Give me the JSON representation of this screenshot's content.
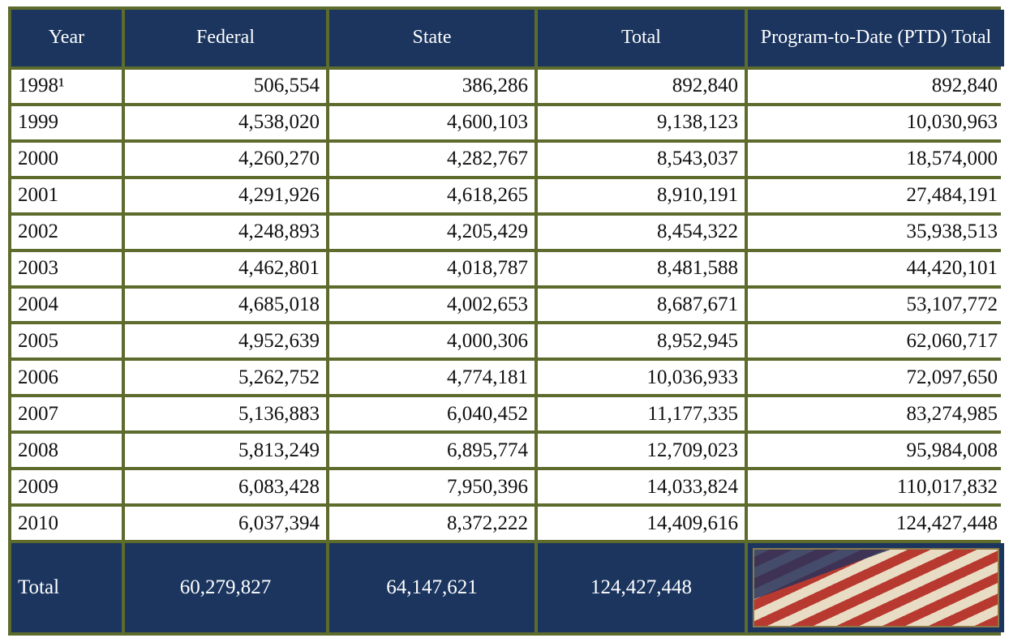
{
  "table": {
    "header": [
      "Year",
      "Federal",
      "State",
      "Total",
      "Program-to-Date (PTD) Total"
    ],
    "rows": [
      [
        "1998¹",
        "506,554",
        "386,286",
        "892,840",
        "892,840"
      ],
      [
        "1999",
        "4,538,020",
        "4,600,103",
        "9,138,123",
        "10,030,963"
      ],
      [
        "2000",
        "4,260,270",
        "4,282,767",
        "8,543,037",
        "18,574,000"
      ],
      [
        "2001",
        "4,291,926",
        "4,618,265",
        "8,910,191",
        "27,484,191"
      ],
      [
        "2002",
        "4,248,893",
        "4,205,429",
        "8,454,322",
        "35,938,513"
      ],
      [
        "2003",
        "4,462,801",
        "4,018,787",
        "8,481,588",
        "44,420,101"
      ],
      [
        "2004",
        "4,685,018",
        "4,002,653",
        "8,687,671",
        "53,107,772"
      ],
      [
        "2005",
        "4,952,639",
        "4,000,306",
        "8,952,945",
        "62,060,717"
      ],
      [
        "2006",
        "5,262,752",
        "4,774,181",
        "10,036,933",
        "72,097,650"
      ],
      [
        "2007",
        "5,136,883",
        "6,040,452",
        "11,177,335",
        "83,274,985"
      ],
      [
        "2008",
        "5,813,249",
        "6,895,774",
        "12,709,023",
        "95,984,008"
      ],
      [
        "2009",
        "6,083,428",
        "7,950,396",
        "14,033,824",
        "110,017,832"
      ],
      [
        "2010",
        "6,037,394",
        "8,372,222",
        "14,409,616",
        "124,427,448"
      ]
    ],
    "total": [
      "Total",
      "60,279,827",
      "64,147,621",
      "124,427,448"
    ]
  }
}
